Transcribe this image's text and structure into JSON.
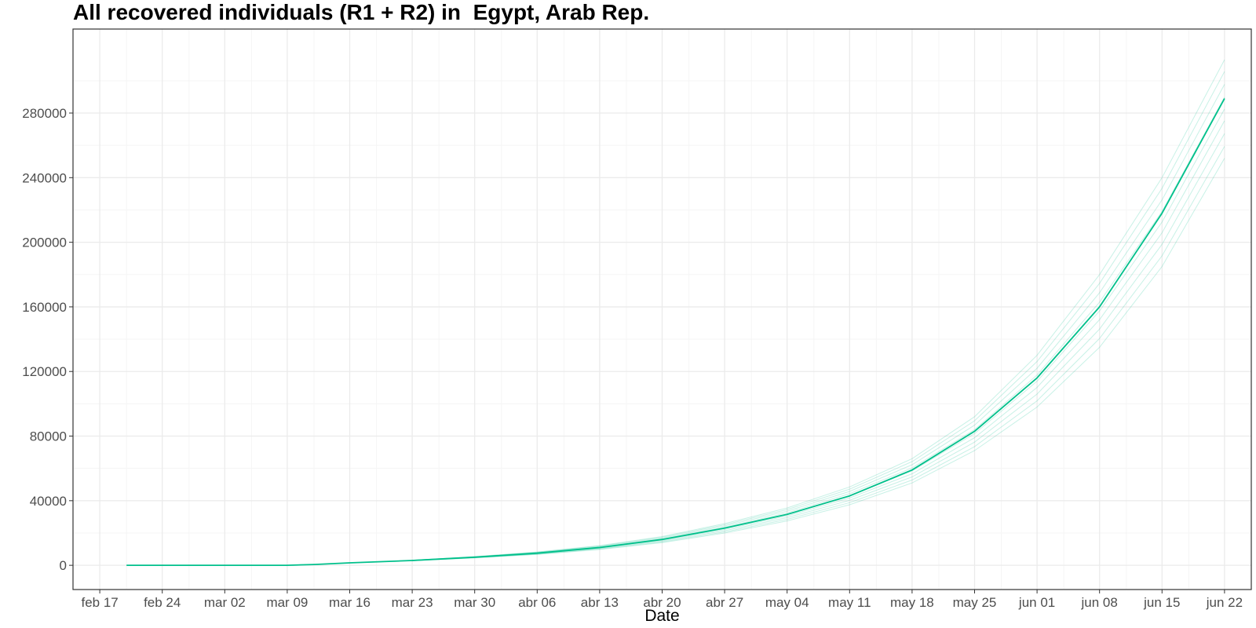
{
  "chart_data": {
    "type": "line",
    "title": "All recovered individuals (R1 + R2) in  Egypt, Arab Rep.",
    "xlabel": "Date",
    "ylabel": "",
    "x_tick_labels": [
      "feb 17",
      "feb 24",
      "mar 02",
      "mar 09",
      "mar 16",
      "mar 23",
      "mar 30",
      "abr 06",
      "abr 13",
      "abr 20",
      "abr 27",
      "may 04",
      "may 11",
      "may 18",
      "may 25",
      "jun 01",
      "jun 08",
      "jun 15",
      "jun 22"
    ],
    "y_tick_labels": [
      "0",
      "40000",
      "80000",
      "120000",
      "160000",
      "200000",
      "240000",
      "280000"
    ],
    "y_ticks": [
      0,
      40000,
      80000,
      120000,
      160000,
      200000,
      240000,
      280000
    ],
    "xlim": [
      "2020-02-14",
      "2020-06-25"
    ],
    "ylim": [
      -15000,
      332000
    ],
    "grid": true,
    "legend": "none",
    "colors": {
      "line": "#00C08B",
      "panel_border": "#333333",
      "grid_major": "#EBEBEB",
      "grid_minor": "#F5F5F5"
    },
    "series": [
      {
        "x": [
          "2020-02-20",
          "2020-03-01",
          "2020-03-09",
          "2020-03-12",
          "2020-03-16",
          "2020-03-23",
          "2020-03-30",
          "2020-04-06",
          "2020-04-13",
          "2020-04-20",
          "2020-04-27",
          "2020-05-04",
          "2020-05-11",
          "2020-05-18",
          "2020-05-25",
          "2020-06-01",
          "2020-06-08",
          "2020-06-15",
          "2020-06-22"
        ],
        "values": [
          0,
          0,
          0,
          500,
          1500,
          3000,
          5000,
          7500,
          11000,
          16000,
          23000,
          31500,
          43000,
          59000,
          83000,
          116000,
          160000,
          218000,
          289000
        ]
      }
    ],
    "band": {
      "x": [
        "2020-03-23",
        "2020-03-30",
        "2020-04-06",
        "2020-04-13",
        "2020-04-20",
        "2020-04-27",
        "2020-05-04",
        "2020-05-11",
        "2020-05-18",
        "2020-05-25",
        "2020-06-01",
        "2020-06-08",
        "2020-06-15",
        "2020-06-22"
      ],
      "low": [
        2800,
        4600,
        6700,
        9800,
        14000,
        20000,
        27500,
        37500,
        51000,
        71000,
        98000,
        135000,
        185000,
        252000
      ],
      "high": [
        3200,
        5400,
        8300,
        12200,
        17800,
        25800,
        35500,
        48500,
        66000,
        92000,
        130000,
        180000,
        240000,
        313000
      ]
    }
  }
}
